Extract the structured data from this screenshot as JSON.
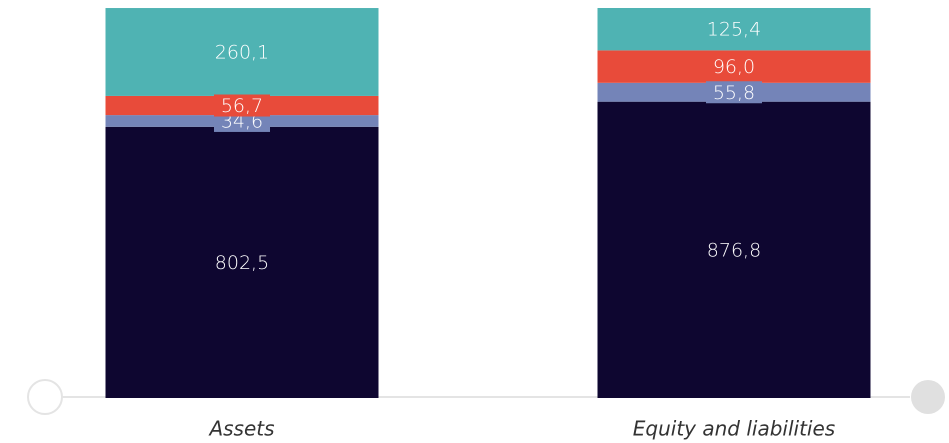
{
  "chart_data": {
    "type": "stacked_bar",
    "categories": [
      "Assets",
      "Equity and liabilities"
    ],
    "series": [
      {
        "color": "#0e0630",
        "values": [
          802.5,
          876.8
        ],
        "value_labels": [
          "802,5",
          "876,8"
        ]
      },
      {
        "color": "#7484b8",
        "values": [
          34.6,
          55.8
        ],
        "value_labels": [
          "34,6",
          "55,8"
        ]
      },
      {
        "color": "#e84b3a",
        "values": [
          56.7,
          96.0
        ],
        "value_labels": [
          "56,7",
          "96,0"
        ]
      },
      {
        "color": "#4fb3b3",
        "values": [
          260.1,
          125.4
        ],
        "value_labels": [
          "260,1",
          "125,4"
        ]
      }
    ]
  }
}
